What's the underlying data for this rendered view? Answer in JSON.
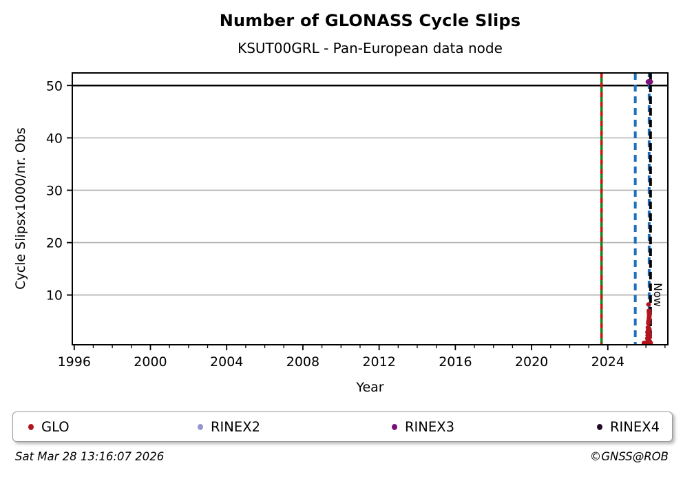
{
  "footer": {
    "timestamp": "Sat Mar 28 13:16:07 2026",
    "credit": "©GNSS@ROB"
  },
  "chart_data": {
    "type": "scatter",
    "title": "Number of GLONASS Cycle Slips",
    "subtitle": "KSUT00GRL - Pan-European data node",
    "xlabel": "Year",
    "ylabel": "Cycle Slipsx1000/nr. Obs",
    "xlim": [
      1995.9,
      2027.15
    ],
    "ylim": [
      0.5,
      52.4
    ],
    "xticks": [
      1996,
      2000,
      2004,
      2008,
      2012,
      2016,
      2020,
      2024
    ],
    "minor_xtick_step_years": 1,
    "yticks": [
      10,
      20,
      30,
      40,
      50
    ],
    "grid": "horizontal-only",
    "grid_color": "#b0b0b0",
    "cap_line": {
      "y": 50,
      "color": "#000000",
      "width": 2.5
    },
    "event_lines": [
      {
        "name": "event-line-green-solid",
        "x": 2023.67,
        "color": "#0e860e",
        "width": 3.5,
        "dash": null
      },
      {
        "name": "event-line-red-dashed",
        "x": 2023.67,
        "color": "#cc1111",
        "width": 3.5,
        "dash": "7,7"
      },
      {
        "name": "event-line-blue-dashed-1",
        "x": 2025.44,
        "color": "#1f6fbe",
        "width": 4,
        "dash": "10,7"
      },
      {
        "name": "event-line-blue-dashed-2",
        "x": 2026.17,
        "color": "#1f6fbe",
        "width": 4,
        "dash": "10,7",
        "dashoffset": 4
      },
      {
        "name": "now-line",
        "x": 2026.24,
        "color": "#000000",
        "width": 4,
        "dash": "11,6"
      }
    ],
    "now_label": {
      "text": "Now",
      "x": 2026.24
    },
    "legend_entries": [
      "GLO",
      "RINEX2",
      "RINEX3",
      "RINEX4"
    ],
    "series": [
      {
        "name": "GLO",
        "color": "#b2151d",
        "marker": "ellipse",
        "marker_rx": 3.6,
        "marker_ry": 3.2,
        "points": [
          [
            2026.14,
            8.2
          ],
          [
            2026.16,
            7.0
          ],
          [
            2026.17,
            6.6
          ],
          [
            2026.18,
            6.2
          ],
          [
            2026.17,
            5.8
          ],
          [
            2026.16,
            5.4
          ],
          [
            2026.14,
            5.0
          ],
          [
            2026.13,
            4.6
          ],
          [
            2026.11,
            3.8
          ],
          [
            2026.14,
            3.7
          ],
          [
            2026.17,
            3.5
          ],
          [
            2026.12,
            3.3
          ],
          [
            2026.16,
            3.1
          ],
          [
            2026.09,
            2.9
          ],
          [
            2026.13,
            2.7
          ],
          [
            2026.18,
            2.5
          ],
          [
            2026.1,
            2.3
          ],
          [
            2026.15,
            2.1
          ],
          [
            2026.19,
            1.9
          ],
          [
            2026.08,
            1.7
          ],
          [
            2026.12,
            1.5
          ],
          [
            2026.16,
            1.3
          ],
          [
            2026.2,
            1.1
          ],
          [
            2026.23,
            0.9
          ],
          [
            2025.9,
            0.85
          ],
          [
            2025.94,
            0.8
          ],
          [
            2025.98,
            0.9
          ],
          [
            2026.02,
            0.8
          ],
          [
            2026.06,
            0.85
          ],
          [
            2026.1,
            0.8
          ],
          [
            2026.14,
            0.9
          ],
          [
            2026.18,
            0.8
          ],
          [
            2026.21,
            0.85
          ],
          [
            2026.24,
            0.8
          ]
        ]
      },
      {
        "name": "RINEX2",
        "color": "#9595cd",
        "marker": "ellipse",
        "marker_rx": 3.6,
        "marker_ry": 3.2,
        "points": []
      },
      {
        "name": "RINEX3",
        "color": "#7a0f7a",
        "marker": "ellipse",
        "marker_rx": 5.5,
        "marker_ry": 4.2,
        "points": [
          [
            2026.18,
            50.7
          ]
        ]
      },
      {
        "name": "RINEX4",
        "color": "#250a28",
        "marker": "ellipse",
        "marker_rx": 3.6,
        "marker_ry": 3.2,
        "points": []
      }
    ]
  }
}
